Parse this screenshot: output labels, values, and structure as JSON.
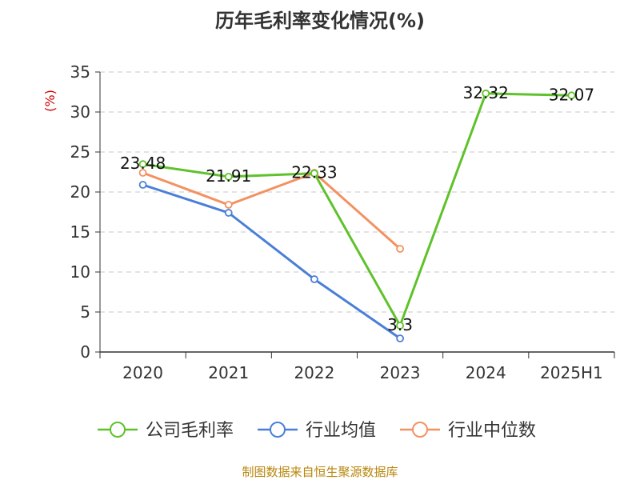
{
  "chart_data": {
    "type": "line",
    "title": "历年毛利率变化情况(%)",
    "ylabel": "(%)",
    "xlabel": "",
    "categories": [
      "2020",
      "2021",
      "2022",
      "2023",
      "2024",
      "2025H1"
    ],
    "ylim": [
      0,
      35
    ],
    "yticks": [
      "0",
      "5",
      "10",
      "15",
      "20",
      "25",
      "30",
      "35"
    ],
    "grid": true,
    "legend_position": "bottom",
    "series": [
      {
        "name": "公司毛利率",
        "color": "#5ec22a",
        "values": [
          23.48,
          21.91,
          22.33,
          3.3,
          32.32,
          32.07
        ],
        "labels": [
          "23.48",
          "21.91",
          "22.33",
          "3.3",
          "32.32",
          "32.07"
        ]
      },
      {
        "name": "行业均值",
        "color": "#4a7fd8",
        "values": [
          20.9,
          17.4,
          9.1,
          1.7,
          null,
          null
        ]
      },
      {
        "name": "行业中位数",
        "color": "#f39160",
        "values": [
          22.4,
          18.4,
          22.4,
          12.9,
          null,
          null
        ]
      }
    ],
    "source": "制图数据来自恒生聚源数据库"
  }
}
